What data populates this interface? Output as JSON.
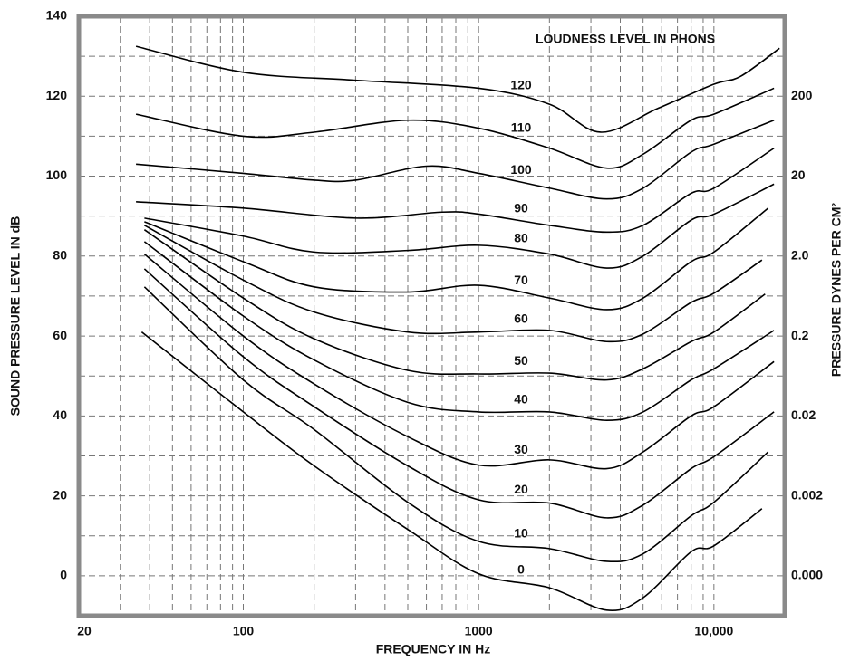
{
  "chart_data": {
    "type": "line",
    "annotation": "LOUDNESS LEVEL IN PHONS",
    "xlabel": "FREQUENCY IN Hz",
    "ylabel": "SOUND PRESSURE LEVEL IN dB",
    "y2label": "PRESSURE DYNES PER CM²",
    "xlog": true,
    "y2log": true,
    "grid": true,
    "line_color": "#000000",
    "frame_color": "#8a8a8a",
    "xlim": [
      20,
      20000
    ],
    "xticks": [
      20,
      100,
      1000,
      {
        "value": 10000,
        "label": "10,000"
      }
    ],
    "xgrid": [
      30,
      40,
      50,
      60,
      70,
      80,
      90,
      100,
      200,
      300,
      400,
      500,
      600,
      700,
      800,
      900,
      1000,
      2000,
      3000,
      4000,
      5000,
      6000,
      7000,
      8000,
      9000,
      10000
    ],
    "ylim": [
      -10,
      140
    ],
    "yticks": [
      0,
      20,
      40,
      60,
      80,
      100,
      120,
      140
    ],
    "ygrid": [
      0,
      10,
      20,
      30,
      40,
      50,
      60,
      70,
      80,
      90,
      100,
      110,
      120,
      130
    ],
    "y2lim": [
      6.32e-05,
      2000
    ],
    "y2ticks": [
      {
        "value": 0.0002,
        "label": "0.000"
      },
      0.002,
      0.02,
      0.2,
      {
        "value": 2,
        "label": "2.0"
      },
      20,
      200
    ],
    "series": [
      {
        "name": "0",
        "x": [
          37,
          100,
          200,
          500,
          1000,
          2000,
          3500,
          5000,
          8000,
          10000,
          16000
        ],
        "y": [
          61,
          41,
          27.5,
          11.6,
          0.5,
          -3,
          -8.6,
          -5.5,
          6,
          7.5,
          16.8
        ]
      },
      {
        "name": "10",
        "x": [
          38,
          100,
          200,
          500,
          1000,
          2000,
          3500,
          5000,
          8000,
          10000,
          17000
        ],
        "y": [
          72.3,
          49,
          36.6,
          18.4,
          8.6,
          6.8,
          3.6,
          5.5,
          15,
          18.4,
          31
        ]
      },
      {
        "name": "20",
        "x": [
          38,
          100,
          200,
          500,
          1000,
          2000,
          3500,
          5000,
          8000,
          10000,
          18000
        ],
        "y": [
          76.8,
          54.8,
          42.3,
          27.5,
          19,
          18.2,
          14.5,
          17.7,
          26.8,
          29.8,
          41
        ]
      },
      {
        "name": "30",
        "x": [
          38,
          100,
          200,
          500,
          1000,
          2000,
          3500,
          5000,
          8000,
          10000,
          18000
        ],
        "y": [
          80.5,
          60,
          48,
          34.8,
          27.7,
          29,
          26.8,
          31,
          40,
          42.3,
          53.6
        ]
      },
      {
        "name": "40",
        "x": [
          38,
          100,
          200,
          500,
          1000,
          2000,
          3500,
          5000,
          8000,
          10000,
          18000
        ],
        "y": [
          83.6,
          65,
          54,
          43.4,
          41,
          41,
          38.9,
          41,
          49,
          51.8,
          61.4
        ]
      },
      {
        "name": "50",
        "x": [
          38,
          100,
          200,
          500,
          1000,
          2000,
          3500,
          5000,
          8000,
          10000,
          16500
        ],
        "y": [
          86.6,
          69.5,
          59.3,
          51.4,
          50.5,
          50.7,
          49,
          51.8,
          58.6,
          61,
          70.5
        ]
      },
      {
        "name": "60",
        "x": [
          38,
          100,
          200,
          500,
          1000,
          2000,
          3500,
          5000,
          8000,
          10000,
          16000
        ],
        "y": [
          87.7,
          74,
          66,
          61,
          61,
          61.4,
          58.6,
          60.5,
          68.4,
          70.7,
          79
        ]
      },
      {
        "name": "70",
        "x": [
          38,
          100,
          200,
          500,
          1000,
          2000,
          3500,
          5000,
          8000,
          10000,
          17000
        ],
        "y": [
          88.6,
          78.6,
          72.3,
          71,
          72.7,
          69.5,
          66.6,
          69.5,
          78.6,
          81,
          92
        ]
      },
      {
        "name": "80",
        "x": [
          38,
          100,
          200,
          500,
          1000,
          2000,
          3500,
          5000,
          8000,
          10000,
          18000
        ],
        "y": [
          89.5,
          85,
          81,
          81.4,
          82.7,
          80.5,
          77,
          80,
          89,
          90.5,
          98
        ]
      },
      {
        "name": "90",
        "x": [
          35,
          100,
          300,
          700,
          1000,
          2000,
          3500,
          5000,
          8000,
          10000,
          18000
        ],
        "y": [
          93.6,
          92,
          89.5,
          91,
          90.5,
          87.7,
          86,
          87.7,
          95.7,
          97,
          107
        ]
      },
      {
        "name": "100",
        "x": [
          35,
          100,
          200,
          300,
          600,
          1000,
          2000,
          3500,
          5000,
          8000,
          10000,
          18000
        ],
        "y": [
          103,
          100.7,
          99,
          99,
          102.5,
          100.7,
          97,
          94.3,
          97,
          106,
          108,
          114
        ]
      },
      {
        "name": "110",
        "x": [
          35,
          100,
          200,
          500,
          1000,
          2000,
          3500,
          5000,
          8000,
          10000,
          18000
        ],
        "y": [
          115.5,
          110,
          111,
          114,
          112,
          107,
          102,
          105.5,
          114,
          115.5,
          122
        ]
      },
      {
        "name": "120",
        "x": [
          35,
          100,
          300,
          1000,
          2000,
          3300,
          5800,
          10000,
          13000,
          19000
        ],
        "y": [
          132.5,
          126,
          124,
          122,
          118,
          111,
          117,
          123,
          125,
          132
        ]
      }
    ]
  }
}
